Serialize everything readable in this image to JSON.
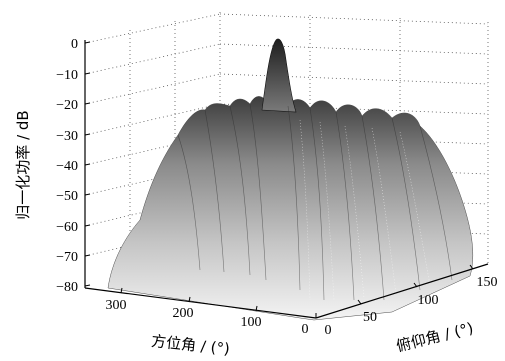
{
  "chart_data": {
    "type": "surface",
    "title": "",
    "zlabel": "归一化功率 / dB",
    "xlabel": "方位角 / (°)",
    "ylabel": "俯仰角 / (°)",
    "z_ticks": [
      "0",
      "−10",
      "−20",
      "−30",
      "−40",
      "−50",
      "−60",
      "−70",
      "−80"
    ],
    "z_tick_values": [
      0,
      -10,
      -20,
      -30,
      -40,
      -50,
      -60,
      -70,
      -80
    ],
    "x_ticks": [
      "300",
      "200",
      "100",
      "0"
    ],
    "x_tick_values": [
      300,
      200,
      100,
      0
    ],
    "y_ticks": [
      "0",
      "50",
      "100",
      "150"
    ],
    "y_tick_values": [
      0,
      50,
      100,
      150
    ],
    "xlim": [
      0,
      360
    ],
    "ylim": [
      0,
      180
    ],
    "zlim": [
      -80,
      0
    ],
    "main_lobe": {
      "azimuth": 180,
      "elevation": 90,
      "power": 0
    },
    "sidelobe_peak_level": -20,
    "grid": true,
    "colormap": "gray"
  }
}
